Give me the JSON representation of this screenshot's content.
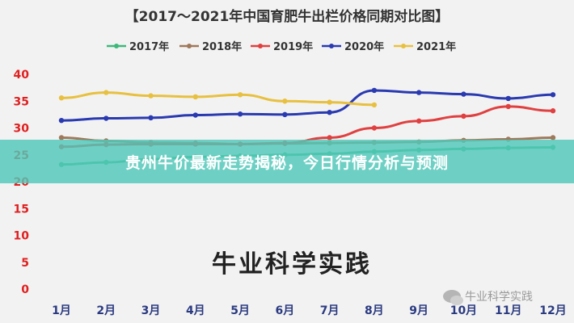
{
  "page": {
    "banner_title": "贵州牛价最新走势揭秘，今日行情分析与预测",
    "watermark_center": "牛业科学实践",
    "watermark_corner": "牛业科学实践"
  },
  "chart_data": {
    "type": "line",
    "title": "【2017～2021年中国育肥牛出栏价格同期对比图】",
    "categories": [
      "1月",
      "2月",
      "3月",
      "4月",
      "5月",
      "6月",
      "7月",
      "8月",
      "9月",
      "10月",
      "11月",
      "12月"
    ],
    "ylim": [
      0,
      40
    ],
    "yticks": [
      0,
      5,
      10,
      15,
      20,
      25,
      30,
      35,
      40
    ],
    "ytick_color": "#e02020",
    "legend_position": "top",
    "grid": false,
    "series": [
      {
        "name": "2017年",
        "color": "#3db87a",
        "values": [
          23.2,
          23.6,
          24.2,
          24.6,
          24.8,
          25.0,
          25.2,
          25.6,
          25.9,
          26.1,
          26.3,
          26.4
        ]
      },
      {
        "name": "2018年",
        "color": "#a0785a",
        "values": [
          28.2,
          27.6,
          27.3,
          27.2,
          27.0,
          27.1,
          27.2,
          27.3,
          27.4,
          27.7,
          27.9,
          28.2
        ]
      },
      {
        "name": "2019年",
        "color": "#e04040",
        "values": [
          26.5,
          26.9,
          27.0,
          27.0,
          27.0,
          27.2,
          28.2,
          30.0,
          31.3,
          32.2,
          34.0,
          33.2
        ]
      },
      {
        "name": "2020年",
        "color": "#2a3ab0",
        "values": [
          31.4,
          31.8,
          31.9,
          32.4,
          32.6,
          32.5,
          32.9,
          37.0,
          36.6,
          36.3,
          35.5,
          36.2
        ]
      },
      {
        "name": "2021年",
        "color": "#e8c040",
        "values": [
          35.6,
          36.6,
          36.0,
          35.8,
          36.2,
          35.0,
          34.8,
          34.3,
          null,
          null,
          null,
          null
        ]
      }
    ]
  }
}
